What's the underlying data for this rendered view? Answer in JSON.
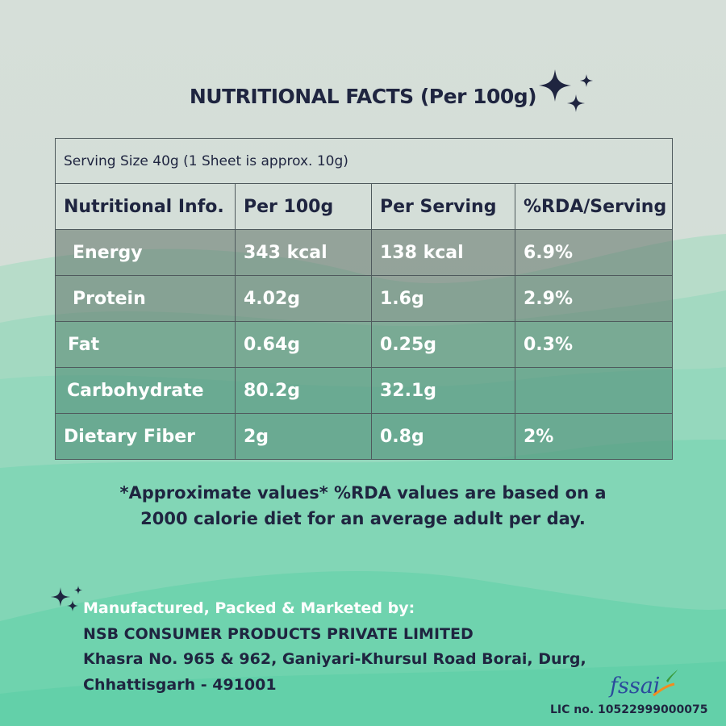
{
  "title": "NUTRITIONAL FACTS (Per 100g)",
  "table": {
    "serving_size": "Serving Size 40g (1 Sheet is approx. 10g)",
    "headers": [
      "Nutritional Info.",
      "Per 100g",
      "Per Serving",
      "%RDA/Serving"
    ],
    "rows": [
      [
        "Energy",
        "343 kcal",
        "138 kcal",
        "6.9%"
      ],
      [
        "Protein",
        "4.02g",
        "1.6g",
        "2.9%"
      ],
      [
        "Fat",
        "0.64g",
        "0.25g",
        "0.3%"
      ],
      [
        "Carbohydrate",
        "80.2g",
        "32.1g",
        ""
      ],
      [
        "Dietary Fiber",
        "2g",
        "0.8g",
        "2%"
      ]
    ]
  },
  "note": {
    "line1": "*Approximate values* %RDA values are based on a",
    "line2": "2000 calorie diet for an average adult per day."
  },
  "manufacturer": {
    "lead": "Manufactured, Packed & Marketed by:",
    "company": "NSB CONSUMER PRODUCTS PRIVATE LIMITED",
    "address1": "Khasra No. 965 & 962, Ganiyari-Khursul Road Borai, Durg,",
    "address2": "Chhattisgarh - 491001"
  },
  "fssai_logo": "fssai",
  "license": "LIC no. 10522999000075",
  "icons": [
    "sparkle-icon",
    "fssai-logo"
  ],
  "colors": {
    "background_top": "#d8e1db",
    "background_bottom": "#5fd0a8",
    "text_dark": "#1f2540",
    "text_light": "#ffffff"
  }
}
